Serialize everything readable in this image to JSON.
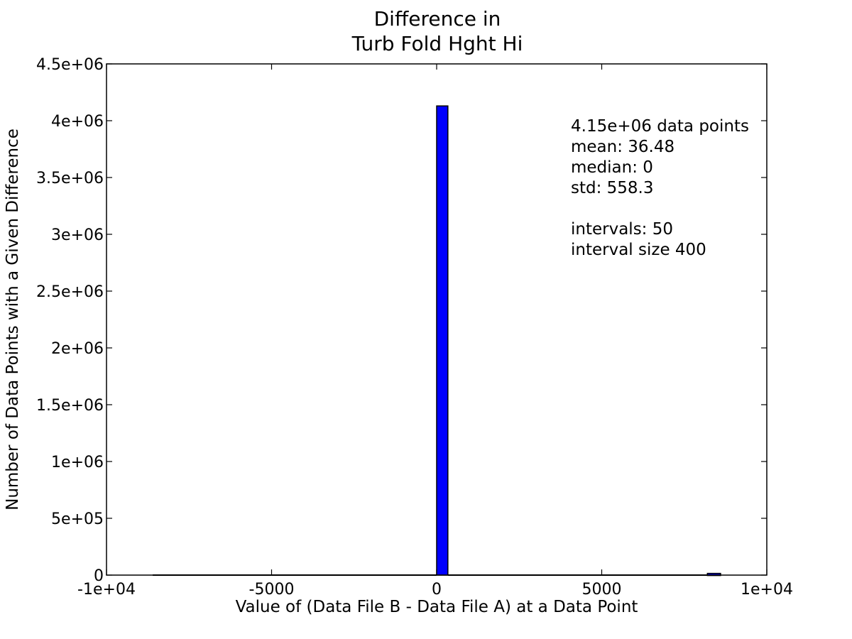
{
  "chart_data": {
    "type": "bar",
    "title": [
      "Difference in",
      "Turb Fold Hght Hi"
    ],
    "xlabel": "Value of (Data File B - Data File A) at a Data Point",
    "ylabel": "Number of Data Points with a Given Difference",
    "xlim": [
      -10000,
      10000
    ],
    "ylim": [
      0,
      4500000
    ],
    "x_ticks": [
      -10000,
      -5000,
      0,
      5000,
      10000
    ],
    "x_tick_labels": [
      "-1e+04",
      "-5000",
      "0",
      "5000",
      "1e+04"
    ],
    "y_ticks": [
      0,
      500000,
      1000000,
      1500000,
      2000000,
      2500000,
      3000000,
      3500000,
      4000000,
      4500000
    ],
    "y_tick_labels": [
      "0",
      "5e+05",
      "1e+06",
      "1.5e+06",
      "2e+06",
      "2.5e+06",
      "3e+06",
      "3.5e+06",
      "4e+06",
      "4.5e+06"
    ],
    "bins": [
      {
        "x0": -8600,
        "x1": 0,
        "value": 0,
        "kind": "flat"
      },
      {
        "x0": 0,
        "x1": 340,
        "value": 4130000,
        "kind": "bar"
      },
      {
        "x0": 340,
        "x1": 8200,
        "value": 0,
        "kind": "flat"
      },
      {
        "x0": 8200,
        "x1": 8600,
        "value": 15000,
        "kind": "bar"
      }
    ],
    "bar_color": "#0000ff",
    "edge_color": "#000000",
    "grid": false,
    "annotation": [
      "4.15e+06 data points",
      "mean: 36.48",
      "median: 0",
      "std: 558.3",
      "",
      "intervals: 50",
      "interval size 400"
    ]
  }
}
